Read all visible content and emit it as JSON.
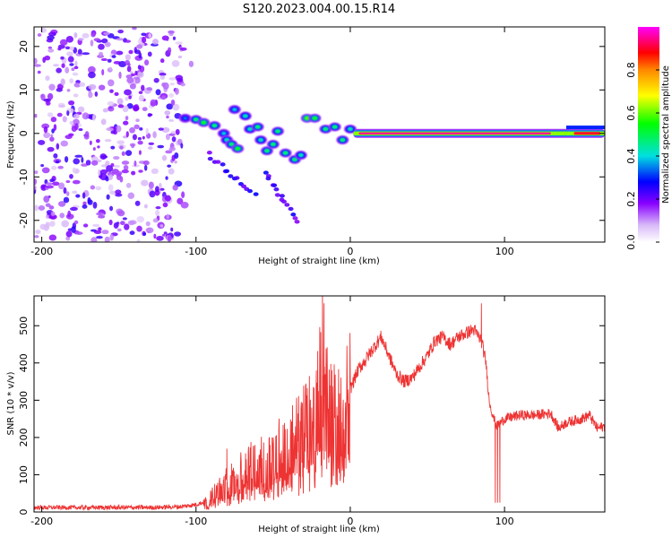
{
  "title": "S120.2023.004.00.15.R14",
  "colors": {
    "snr_line": "#ee3333",
    "background": "#ffffff",
    "axis": "#000000"
  },
  "chart_data": [
    {
      "type": "heatmap",
      "title": "S120.2023.004.00.15.R14",
      "xlabel": "Height of straight line (km)",
      "ylabel": "Frequency (Hz)",
      "xlim": [
        -205,
        165
      ],
      "ylim": [
        -25,
        24.5
      ],
      "x_ticks": [
        -200,
        -100,
        0,
        100
      ],
      "y_ticks": [
        -20,
        -10,
        0,
        10,
        20
      ],
      "colorbar": {
        "label": "Normalized spectral amplitude",
        "range": [
          0,
          1
        ],
        "ticks": [
          0.0,
          0.2,
          0.4,
          0.6,
          0.8
        ],
        "colormap": [
          "#ffffff",
          "#d8b8f8",
          "#8800ff",
          "#0000ff",
          "#00e0e0",
          "#00ff00",
          "#ffff00",
          "#ff0000",
          "#ff00ff"
        ]
      },
      "noise_region": {
        "x_range": [
          -205,
          -110
        ],
        "y_range": [
          -25,
          24.5
        ],
        "amplitude_range": [
          0.05,
          0.25
        ]
      },
      "features": [
        {
          "x": -107,
          "y": 3.5,
          "amp": 0.3
        },
        {
          "x": -100,
          "y": 3.2,
          "amp": 0.45
        },
        {
          "x": -95,
          "y": 2.5,
          "amp": 0.5
        },
        {
          "x": -88,
          "y": 1.8,
          "amp": 0.45
        },
        {
          "x": -82,
          "y": 0.0,
          "amp": 0.35
        },
        {
          "x": -80,
          "y": -1.5,
          "amp": 0.4
        },
        {
          "x": -77,
          "y": -2.5,
          "amp": 0.45
        },
        {
          "x": -73,
          "y": -3.5,
          "amp": 0.5
        },
        {
          "x": -75,
          "y": 5.5,
          "amp": 0.35
        },
        {
          "x": -68,
          "y": 4.0,
          "amp": 0.4
        },
        {
          "x": -65,
          "y": 1.0,
          "amp": 0.4
        },
        {
          "x": -60,
          "y": 1.5,
          "amp": 0.45
        },
        {
          "x": -58,
          "y": -1.5,
          "amp": 0.4
        },
        {
          "x": -54,
          "y": -4.0,
          "amp": 0.45
        },
        {
          "x": -50,
          "y": -2.5,
          "amp": 0.45
        },
        {
          "x": -47,
          "y": 0.5,
          "amp": 0.45
        },
        {
          "x": -42,
          "y": -4.5,
          "amp": 0.45
        },
        {
          "x": -36,
          "y": -6.0,
          "amp": 0.45
        },
        {
          "x": -32,
          "y": -5.0,
          "amp": 0.4
        },
        {
          "x": -28,
          "y": 3.5,
          "amp": 0.55
        },
        {
          "x": -23,
          "y": 3.5,
          "amp": 0.5
        },
        {
          "x": -16,
          "y": 1.0,
          "amp": 0.45
        },
        {
          "x": -10,
          "y": 1.5,
          "amp": 0.45
        },
        {
          "x": -5,
          "y": -1.5,
          "amp": 0.45
        },
        {
          "x": 0,
          "y": 1.0,
          "amp": 0.4
        }
      ],
      "dispersive_tracks": [
        {
          "x_start": -92,
          "y_start": -5,
          "x_end": -62,
          "y_end": -14,
          "amp": 0.2
        },
        {
          "x_start": -55,
          "y_start": -9,
          "x_end": -35,
          "y_end": -20,
          "amp": 0.2
        }
      ],
      "tone": {
        "y": 0.0,
        "x_start": 2,
        "x_end": 165,
        "amp_start": 0.95,
        "amp_mid": 0.95,
        "amp_end": 0.9
      }
    },
    {
      "type": "line",
      "xlabel": "Height of straight line (km)",
      "ylabel": "SNR (10 * v/v)",
      "xlim": [
        -205,
        165
      ],
      "ylim": [
        0,
        580
      ],
      "x_ticks": [
        -200,
        -100,
        0,
        100
      ],
      "y_ticks": [
        0,
        100,
        200,
        300,
        400,
        500
      ],
      "envelope": {
        "x": [
          -205,
          -130,
          -110,
          -100,
          -92,
          -88,
          -85,
          -80,
          -78,
          -75,
          -70,
          -60,
          -50,
          -45,
          -40,
          -35,
          -30,
          -25,
          -22,
          -20,
          -18,
          -15,
          -10,
          -5,
          0,
          5,
          10,
          15,
          20,
          25,
          30,
          35,
          40,
          50,
          55,
          60,
          65,
          70,
          75,
          80,
          85,
          88,
          90,
          93,
          95,
          100,
          110,
          120,
          130,
          135,
          140,
          150,
          155,
          160,
          165
        ],
        "y": [
          12,
          12,
          14,
          20,
          30,
          50,
          60,
          80,
          70,
          90,
          110,
          130,
          150,
          170,
          180,
          200,
          220,
          260,
          300,
          330,
          320,
          300,
          260,
          250,
          330,
          380,
          410,
          440,
          470,
          420,
          370,
          350,
          360,
          420,
          460,
          470,
          450,
          470,
          480,
          490,
          460,
          400,
          300,
          250,
          230,
          250,
          260,
          260,
          265,
          225,
          240,
          250,
          260,
          225,
          230
        ]
      },
      "spikes": [
        {
          "x": -80,
          "y": 170
        },
        {
          "x": -77,
          "y": 130
        },
        {
          "x": -65,
          "y": 150
        },
        {
          "x": -50,
          "y": 200
        },
        {
          "x": -38,
          "y": 240
        },
        {
          "x": -22,
          "y": 380
        },
        {
          "x": -18,
          "y": 580
        },
        {
          "x": -17,
          "y": 560
        },
        {
          "x": -13,
          "y": 340
        },
        {
          "x": 10,
          "y": 390
        },
        {
          "x": 85,
          "y": 560
        }
      ],
      "dips": [
        {
          "x": 94,
          "y": 25
        },
        {
          "x": 95.5,
          "y": 25
        },
        {
          "x": 97,
          "y": 25
        }
      ]
    }
  ]
}
